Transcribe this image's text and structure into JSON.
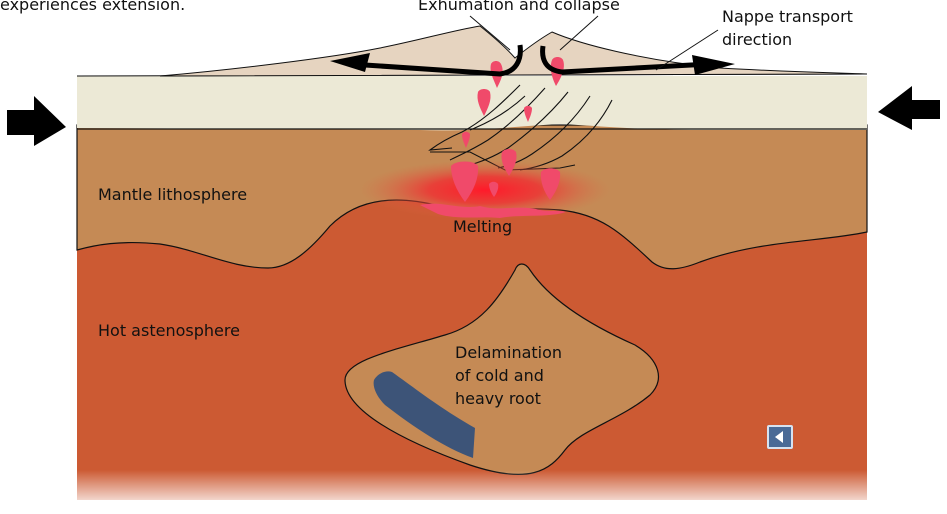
{
  "intro_text": "experiences extension.",
  "labels": {
    "exhumation": "Exhumation and collapse",
    "nappe_line1": "Nappe transport",
    "nappe_line2": "direction",
    "mantle_lithosphere": "Mantle lithosphere",
    "melting": "Melting",
    "hot_astenosphere": "Hot astenosphere",
    "delamination_line1": "Delamination",
    "delamination_line2": "of cold and",
    "delamination_line3": "heavy root"
  },
  "nav": {
    "icon": "back-arrow-icon"
  },
  "colors": {
    "crust": "#ece9d6",
    "orogen": "#e6d4c0",
    "mantle_lithosphere": "#c58a55",
    "astenosphere": "#cc5a33",
    "melt": "#f04a6a",
    "delaminated_slab": "#3d5478",
    "arrow": "#000000"
  }
}
